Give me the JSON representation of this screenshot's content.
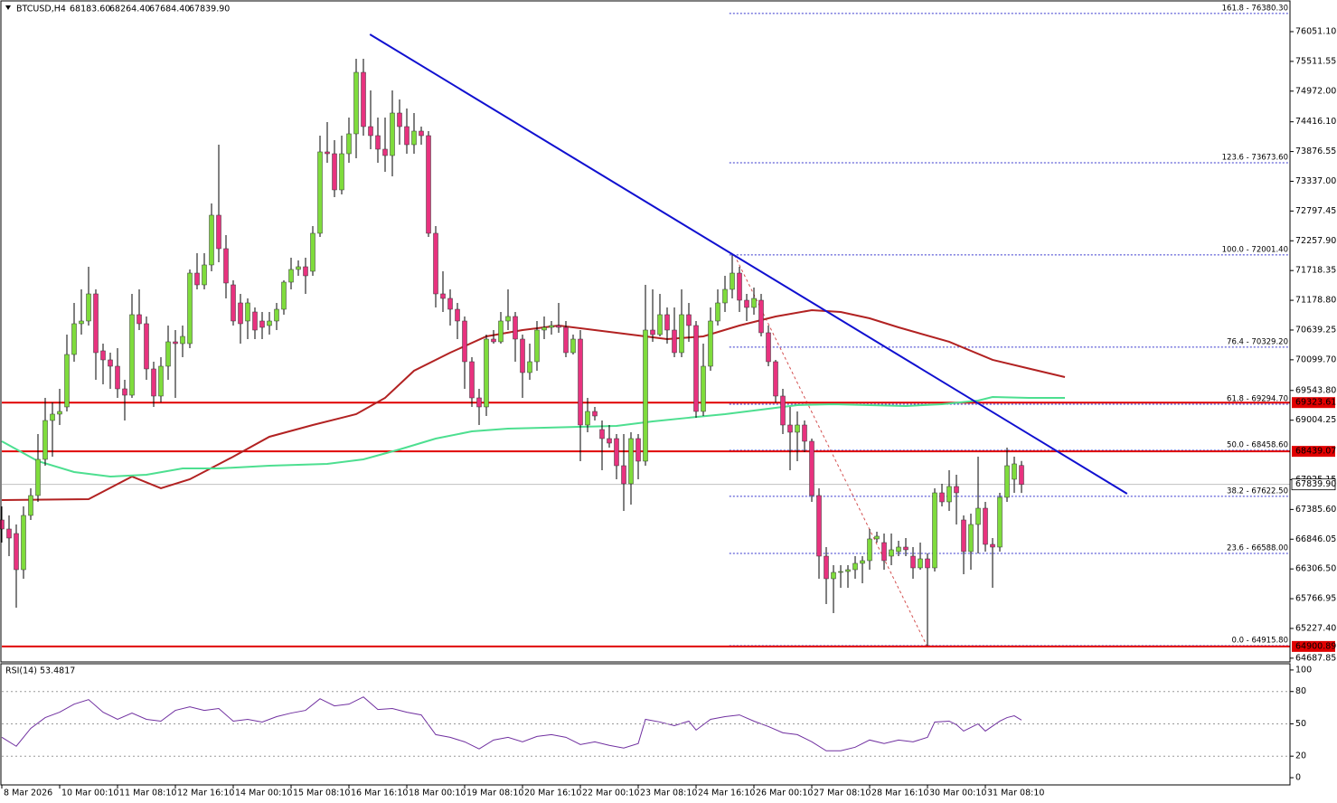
{
  "header": {
    "symbol": "BTCUSD,H4",
    "ohlc": [
      68183.6,
      68264.4,
      67684.4,
      67839.9
    ],
    "ohlc_labels": [
      "68183.60",
      "68264.40",
      "67684.40",
      "67839.90"
    ]
  },
  "chart_data": {
    "type": "candlestick",
    "colors": {
      "up": "#7fdc3c",
      "down": "#e8327f"
    },
    "ylim": [
      64620,
      76592
    ],
    "yticks": [
      {
        "value": 76051.1,
        "label": "76051.10"
      },
      {
        "value": 75511.55,
        "label": "75511.55"
      },
      {
        "value": 74972,
        "label": "74972.00"
      },
      {
        "value": 74416.1,
        "label": "74416.10"
      },
      {
        "value": 73876.55,
        "label": "73876.55"
      },
      {
        "value": 73337,
        "label": "73337.00"
      },
      {
        "value": 72797.45,
        "label": "72797.45"
      },
      {
        "value": 72257.9,
        "label": "72257.90"
      },
      {
        "value": 71718.35,
        "label": "71718.35"
      },
      {
        "value": 71178.8,
        "label": "71178.80"
      },
      {
        "value": 70639.25,
        "label": "70639.25"
      },
      {
        "value": 70099.7,
        "label": "70099.70"
      },
      {
        "value": 69543.8,
        "label": "69543.80"
      },
      {
        "value": 69004.25,
        "label": "69004.25"
      },
      {
        "value": 67925.15,
        "label": "67925.15"
      },
      {
        "value": 67385.6,
        "label": "67385.60"
      },
      {
        "value": 66846.05,
        "label": "66846.05"
      },
      {
        "value": 66306.5,
        "label": "66306.50"
      },
      {
        "value": 65766.95,
        "label": "65766.95"
      },
      {
        "value": 65227.4,
        "label": "65227.40"
      },
      {
        "value": 64687.85,
        "label": "64687.85"
      }
    ],
    "x_labels": [
      {
        "index": 0,
        "label": "8 Mar 2026"
      },
      {
        "index": 8,
        "label": "10 Mar 00:10"
      },
      {
        "index": 16,
        "label": "11 Mar 08:10"
      },
      {
        "index": 24,
        "label": "12 Mar 16:10"
      },
      {
        "index": 32,
        "label": "14 Mar 00:10"
      },
      {
        "index": 40,
        "label": "15 Mar 08:10"
      },
      {
        "index": 48,
        "label": "16 Mar 16:10"
      },
      {
        "index": 56,
        "label": "18 Mar 00:10"
      },
      {
        "index": 64,
        "label": "19 Mar 08:10"
      },
      {
        "index": 72,
        "label": "20 Mar 16:10"
      },
      {
        "index": 80,
        "label": "22 Mar 00:10"
      },
      {
        "index": 88,
        "label": "23 Mar 08:10"
      },
      {
        "index": 96,
        "label": "24 Mar 16:10"
      },
      {
        "index": 104,
        "label": "26 Mar 00:10"
      },
      {
        "index": 112,
        "label": "27 Mar 08:10"
      },
      {
        "index": 120,
        "label": "28 Mar 16:10"
      },
      {
        "index": 128,
        "label": "30 Mar 00:10"
      },
      {
        "index": 136,
        "label": "31 Mar 08:10"
      }
    ],
    "candles": [
      [
        67195,
        67441,
        66785,
        67031
      ],
      [
        67031,
        67277,
        66539,
        66867
      ],
      [
        66949,
        67113,
        65604,
        66293
      ],
      [
        66293,
        67441,
        66129,
        67277
      ],
      [
        67277,
        67769,
        67195,
        67638
      ],
      [
        67638,
        68753,
        67523,
        68294
      ],
      [
        68294,
        69409,
        68179,
        68999
      ],
      [
        68999,
        69327,
        68343,
        69114
      ],
      [
        69114,
        69573,
        68917,
        69163
      ],
      [
        69245,
        70557,
        69163,
        70196
      ],
      [
        70196,
        71131,
        70065,
        70754
      ],
      [
        70754,
        71377,
        70557,
        70803
      ],
      [
        70803,
        71787,
        70721,
        71295
      ],
      [
        71295,
        71377,
        69737,
        70229
      ],
      [
        70262,
        70393,
        69655,
        70098
      ],
      [
        70098,
        70229,
        69573,
        69983
      ],
      [
        69983,
        70311,
        69409,
        69573
      ],
      [
        69573,
        69737,
        68999,
        69458
      ],
      [
        69458,
        71295,
        69409,
        70918
      ],
      [
        70918,
        71377,
        70639,
        70754
      ],
      [
        70754,
        70885,
        69737,
        69934
      ],
      [
        69934,
        70065,
        69245,
        69442
      ],
      [
        69442,
        70147,
        69327,
        69983
      ],
      [
        69983,
        70721,
        69737,
        70426
      ],
      [
        70426,
        70639,
        69409,
        70393
      ],
      [
        70393,
        70721,
        70147,
        70524
      ],
      [
        70393,
        71738,
        70311,
        71672
      ],
      [
        71672,
        72033,
        71377,
        71459
      ],
      [
        71459,
        72033,
        71377,
        71820
      ],
      [
        71820,
        72935,
        71705,
        72722
      ],
      [
        72722,
        74001,
        71869,
        72115
      ],
      [
        72115,
        72361,
        71213,
        71492
      ],
      [
        71459,
        71541,
        70721,
        70803
      ],
      [
        71131,
        71295,
        70393,
        70754
      ],
      [
        70803,
        71213,
        70475,
        71131
      ],
      [
        70967,
        71049,
        70475,
        70639
      ],
      [
        70803,
        70967,
        70475,
        70688
      ],
      [
        70721,
        70967,
        70557,
        70803
      ],
      [
        70803,
        71131,
        70639,
        71016
      ],
      [
        71016,
        71541,
        70918,
        71508
      ],
      [
        71508,
        71951,
        71377,
        71738
      ],
      [
        71738,
        71902,
        71623,
        71787
      ],
      [
        71787,
        71951,
        71295,
        71623
      ],
      [
        71705,
        72525,
        71623,
        72394
      ],
      [
        72394,
        74165,
        72328,
        73870
      ],
      [
        73870,
        74411,
        73673,
        73837
      ],
      [
        73837,
        74083,
        73050,
        73181
      ],
      [
        73181,
        74165,
        73099,
        73837
      ],
      [
        73837,
        74493,
        73673,
        74198
      ],
      [
        74198,
        75559,
        73755,
        75313
      ],
      [
        75313,
        75559,
        74165,
        74329
      ],
      [
        74329,
        74985,
        73919,
        74165
      ],
      [
        74165,
        74493,
        73673,
        73919
      ],
      [
        73919,
        74493,
        73509,
        73804
      ],
      [
        73804,
        74985,
        73427,
        74575
      ],
      [
        74575,
        74821,
        74001,
        74329
      ],
      [
        74329,
        74657,
        73837,
        74001
      ],
      [
        74001,
        74575,
        73837,
        74247
      ],
      [
        74247,
        74329,
        74001,
        74165
      ],
      [
        74165,
        74247,
        72328,
        72394
      ],
      [
        72394,
        72525,
        71049,
        71295
      ],
      [
        71295,
        71705,
        70967,
        71213
      ],
      [
        71213,
        71377,
        70721,
        71016
      ],
      [
        71016,
        71131,
        70475,
        70803
      ],
      [
        70803,
        70885,
        69573,
        70065
      ],
      [
        70065,
        70147,
        69245,
        69409
      ],
      [
        69409,
        69573,
        68917,
        69245
      ],
      [
        69245,
        70557,
        69081,
        70475
      ],
      [
        70475,
        70639,
        70393,
        70426
      ],
      [
        70426,
        70967,
        70393,
        70803
      ],
      [
        70803,
        71377,
        70639,
        70885
      ],
      [
        70885,
        70967,
        70065,
        70475
      ],
      [
        70475,
        70557,
        69409,
        69868
      ],
      [
        69868,
        70393,
        69737,
        70065
      ],
      [
        70065,
        70803,
        69901,
        70639
      ],
      [
        70639,
        70885,
        70475,
        70688
      ],
      [
        70688,
        70803,
        70557,
        70721
      ],
      [
        70721,
        71131,
        70590,
        70688
      ],
      [
        70688,
        70803,
        70147,
        70229
      ],
      [
        70229,
        70557,
        70196,
        70475
      ],
      [
        70475,
        70639,
        68261,
        68917
      ],
      [
        68917,
        69409,
        68786,
        69163
      ],
      [
        69163,
        69245,
        68999,
        69081
      ],
      [
        68835,
        68999,
        68097,
        68671
      ],
      [
        68671,
        68917,
        68507,
        68589
      ],
      [
        68671,
        68753,
        67933,
        68179
      ],
      [
        68179,
        68753,
        67359,
        67851
      ],
      [
        67851,
        68786,
        67474,
        68671
      ],
      [
        68671,
        68753,
        67933,
        68261
      ],
      [
        68261,
        71459,
        68179,
        70639
      ],
      [
        70639,
        71377,
        70426,
        70557
      ],
      [
        70557,
        71295,
        70524,
        70918
      ],
      [
        70918,
        71049,
        70393,
        70639
      ],
      [
        70639,
        71049,
        70147,
        70229
      ],
      [
        70229,
        71377,
        70147,
        70918
      ],
      [
        70918,
        71131,
        70426,
        70721
      ],
      [
        70721,
        70803,
        69049,
        69163
      ],
      [
        69163,
        70393,
        69081,
        69983
      ],
      [
        69983,
        71049,
        69901,
        70803
      ],
      [
        70803,
        71377,
        70721,
        71131
      ],
      [
        71131,
        71623,
        70967,
        71377
      ],
      [
        71377,
        72000,
        71213,
        71672
      ],
      [
        71672,
        71787,
        70967,
        71180
      ],
      [
        71180,
        71295,
        70803,
        71049
      ],
      [
        71049,
        71410,
        70918,
        71213
      ],
      [
        71180,
        71295,
        70524,
        70590
      ],
      [
        70590,
        70721,
        69983,
        70065
      ],
      [
        70065,
        70098,
        69327,
        69442
      ],
      [
        69442,
        69573,
        68753,
        68917
      ],
      [
        68917,
        69245,
        68097,
        68786
      ],
      [
        68786,
        69163,
        68261,
        68917
      ],
      [
        68917,
        68999,
        68425,
        68622
      ],
      [
        68622,
        68671,
        67523,
        67638
      ],
      [
        67638,
        67769,
        66129,
        66539
      ],
      [
        66539,
        66703,
        65670,
        66129
      ],
      [
        66129,
        66375,
        65506,
        66244
      ],
      [
        66244,
        66375,
        65965,
        66260
      ],
      [
        66260,
        66375,
        65965,
        66293
      ],
      [
        66293,
        66539,
        66129,
        66408
      ],
      [
        66408,
        66539,
        66047,
        66457
      ],
      [
        66457,
        67031,
        66293,
        66851
      ],
      [
        66851,
        66982,
        66785,
        66900
      ],
      [
        66785,
        66949,
        66293,
        66457
      ],
      [
        66539,
        66949,
        66375,
        66654
      ],
      [
        66621,
        66818,
        66539,
        66703
      ],
      [
        66703,
        66867,
        66539,
        66654
      ],
      [
        66539,
        66703,
        66129,
        66326
      ],
      [
        66326,
        66785,
        66293,
        66490
      ],
      [
        66490,
        66588,
        64916,
        66326
      ],
      [
        66326,
        67769,
        66260,
        67687
      ],
      [
        67687,
        67851,
        67441,
        67523
      ],
      [
        67523,
        68097,
        67359,
        67802
      ],
      [
        67802,
        68015,
        67113,
        67687
      ],
      [
        67195,
        67277,
        66211,
        66621
      ],
      [
        66621,
        67310,
        66293,
        67113
      ],
      [
        67113,
        68343,
        66588,
        67408
      ],
      [
        67408,
        67523,
        66621,
        66752
      ],
      [
        66752,
        66867,
        65965,
        66703
      ],
      [
        66703,
        67687,
        66621,
        67605
      ],
      [
        67605,
        68507,
        67523,
        68179
      ],
      [
        67933,
        68343,
        67687,
        68212
      ],
      [
        68183.6,
        68264.4,
        67684.4,
        67839.9
      ]
    ],
    "moving_averages": [
      {
        "color": "#b22222",
        "x": [
          0,
          12,
          18,
          22,
          26,
          32,
          37,
          43,
          49,
          53,
          57,
          62,
          67,
          72,
          77,
          82,
          87,
          92,
          97,
          102,
          107,
          112,
          116,
          120,
          124,
          131,
          137,
          147
        ],
        "values": [
          67556,
          67572,
          67982,
          67769,
          67933,
          68343,
          68704,
          68917,
          69114,
          69409,
          69901,
          70229,
          70524,
          70639,
          70721,
          70639,
          70557,
          70475,
          70524,
          70721,
          70885,
          71000,
          70967,
          70852,
          70688,
          70426,
          70098,
          69786
        ]
      },
      {
        "color": "#4ddf90",
        "x": [
          0,
          5,
          10,
          15,
          20,
          25,
          30,
          37,
          45,
          50,
          55,
          60,
          65,
          70,
          75,
          80,
          85,
          90,
          95,
          100,
          105,
          110,
          115,
          120,
          125,
          130,
          135,
          137,
          142,
          147
        ],
        "values": [
          68622,
          68261,
          68064,
          67982,
          68015,
          68130,
          68130,
          68179,
          68212,
          68294,
          68474,
          68671,
          68802,
          68851,
          68868,
          68884,
          68901,
          68983,
          69049,
          69114,
          69196,
          69278,
          69294,
          69278,
          69261,
          69294,
          69360,
          69425,
          69409,
          69409
        ]
      }
    ],
    "trendline": {
      "color": "#1010d0",
      "x": [
        50.9,
        155.6
      ],
      "values": [
        76002,
        67671
      ]
    },
    "fib": {
      "color": "#3333cc",
      "start": 100.6,
      "levels": [
        {
          "label": "161.8 - 76380.30",
          "value": 76380.3
        },
        {
          "label": "123.6 - 73673.60",
          "value": 73673.6
        },
        {
          "label": "100.0 - 72001.40",
          "value": 72001.4
        },
        {
          "label": "76.4 - 70329.20",
          "value": 70329.2
        },
        {
          "label": "61.8 - 69294.70",
          "value": 69294.7
        },
        {
          "label": "50.0 - 68458.60",
          "value": 68458.6
        },
        {
          "label": "38.2 - 67622.50",
          "value": 67622.5
        },
        {
          "label": "23.6 - 66588.00",
          "value": 66588
        },
        {
          "label": "0.0 - 64915.80",
          "value": 64915.8
        }
      ],
      "connector": {
        "color": "#d45050",
        "x": [
          101.3,
          127.9
        ],
        "values": [
          72001.4,
          64915.8
        ]
      }
    },
    "hlines": [
      {
        "value": 69323.61,
        "label": "69323.61",
        "color": "#e00000"
      },
      {
        "value": 68439.07,
        "label": "68439.07",
        "color": "#e00000"
      },
      {
        "value": 64900.89,
        "label": "64900.89",
        "color": "#e00000"
      }
    ],
    "last_price": {
      "value": 67839.9,
      "label": "67839.90"
    },
    "rsi": {
      "name": "RSI(14)",
      "color": "#7030a0",
      "ylim": [
        -6.7,
        105.8
      ],
      "yticks": [
        100,
        80,
        50,
        20,
        0
      ],
      "levels": [
        80,
        50,
        20
      ],
      "x": [
        0,
        2,
        4,
        6,
        8,
        10,
        12,
        14,
        16,
        18,
        20,
        22,
        24,
        26,
        28,
        30,
        32,
        34,
        36,
        38,
        40,
        42,
        44,
        46,
        48,
        50,
        52,
        54,
        56,
        58,
        60,
        62,
        64,
        66,
        68,
        70,
        72,
        74,
        76,
        78,
        80,
        82,
        84,
        86,
        88,
        89,
        91,
        93,
        95,
        96,
        98,
        100,
        102,
        104,
        106,
        108,
        110,
        112,
        114,
        116,
        118,
        120,
        122,
        124,
        126,
        128,
        129,
        131,
        132,
        133,
        135,
        136,
        138,
        139,
        140,
        141
      ],
      "values": [
        37.5,
        29.2,
        45.8,
        55.8,
        60.8,
        68.3,
        72.5,
        60.8,
        54.2,
        60,
        54.2,
        52.5,
        62.5,
        65.8,
        62.5,
        64.2,
        52.5,
        54.2,
        51.7,
        56.7,
        60,
        62.5,
        73.3,
        66.7,
        68.3,
        75,
        63.3,
        64.2,
        60.8,
        58.3,
        40,
        37.5,
        33.3,
        26.7,
        35,
        37.5,
        33.3,
        38.3,
        40,
        37.5,
        30.8,
        33.3,
        30,
        27.5,
        31.7,
        54.2,
        51.7,
        48.3,
        52.5,
        44.2,
        54.2,
        56.7,
        58.3,
        52.5,
        47.5,
        41.7,
        40,
        33.3,
        25,
        25,
        28.3,
        35,
        31.7,
        35,
        33.3,
        37.5,
        51.7,
        52.5,
        49.2,
        43.3,
        50,
        43.3,
        52.5,
        55.8,
        57.5,
        53.4817
      ]
    }
  }
}
